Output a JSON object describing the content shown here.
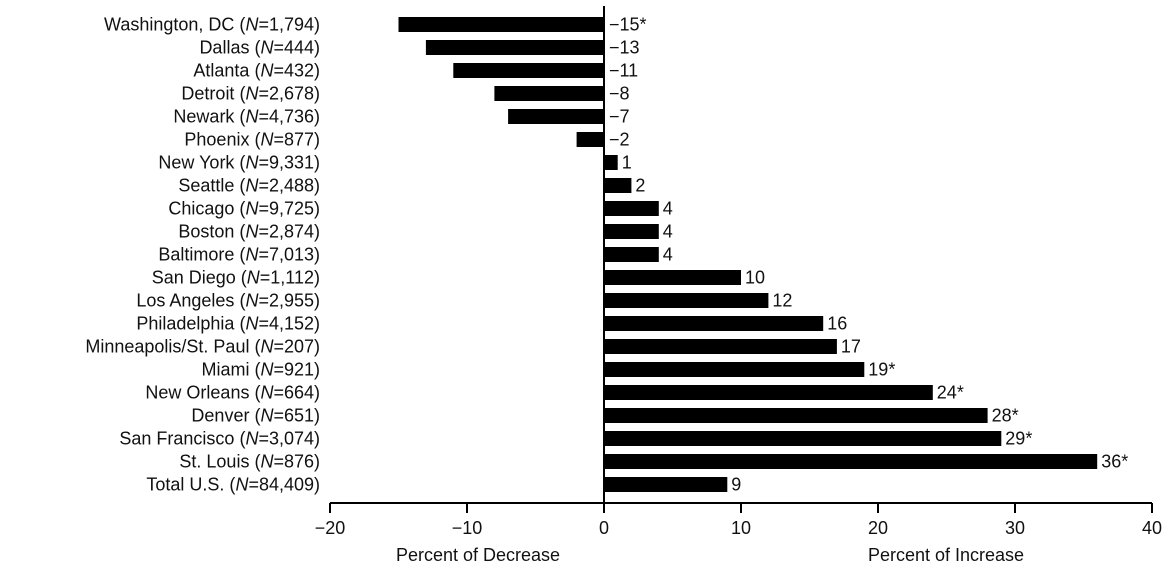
{
  "chart_data": {
    "type": "bar",
    "orientation": "horizontal",
    "categories": [
      {
        "name": "Washington, DC",
        "n": "1,794"
      },
      {
        "name": "Dallas",
        "n": "444"
      },
      {
        "name": "Atlanta",
        "n": "432"
      },
      {
        "name": "Detroit",
        "n": "2,678"
      },
      {
        "name": "Newark",
        "n": "4,736"
      },
      {
        "name": "Phoenix",
        "n": "877"
      },
      {
        "name": "New York",
        "n": "9,331"
      },
      {
        "name": "Seattle",
        "n": "2,488"
      },
      {
        "name": "Chicago",
        "n": "9,725"
      },
      {
        "name": "Boston",
        "n": "2,874"
      },
      {
        "name": "Baltimore",
        "n": "7,013"
      },
      {
        "name": "San Diego",
        "n": "1,112"
      },
      {
        "name": "Los Angeles",
        "n": "2,955"
      },
      {
        "name": "Philadelphia",
        "n": "4,152"
      },
      {
        "name": "Minneapolis/St. Paul",
        "n": "207"
      },
      {
        "name": "Miami",
        "n": "921"
      },
      {
        "name": "New Orleans",
        "n": "664"
      },
      {
        "name": "Denver",
        "n": "651"
      },
      {
        "name": "San Francisco",
        "n": "3,074"
      },
      {
        "name": "St. Louis",
        "n": "876"
      },
      {
        "name": "Total U.S.",
        "n": "84,409"
      }
    ],
    "values": [
      -15,
      -13,
      -11,
      -8,
      -7,
      -2,
      1,
      2,
      4,
      4,
      4,
      10,
      12,
      16,
      17,
      19,
      24,
      28,
      29,
      36,
      9
    ],
    "value_labels": [
      "−15*",
      "−13",
      "−11",
      "−8",
      "−7",
      "−2",
      "1",
      "2",
      "4",
      "4",
      "4",
      "10",
      "12",
      "16",
      "17",
      "19*",
      "24*",
      "28*",
      "29*",
      "36*",
      "9"
    ],
    "n_prefix": "N",
    "n_separator": "=",
    "xlim": [
      -20,
      40
    ],
    "xticks": [
      -20,
      -10,
      0,
      10,
      20,
      30,
      40
    ],
    "xtick_labels": [
      "−20",
      "−10",
      "0",
      "10",
      "20",
      "30",
      "40"
    ],
    "xlabel_left": "Percent of Decrease",
    "xlabel_right": "Percent of Increase",
    "bar_color": "#000000",
    "grid": false,
    "legend": "none"
  }
}
